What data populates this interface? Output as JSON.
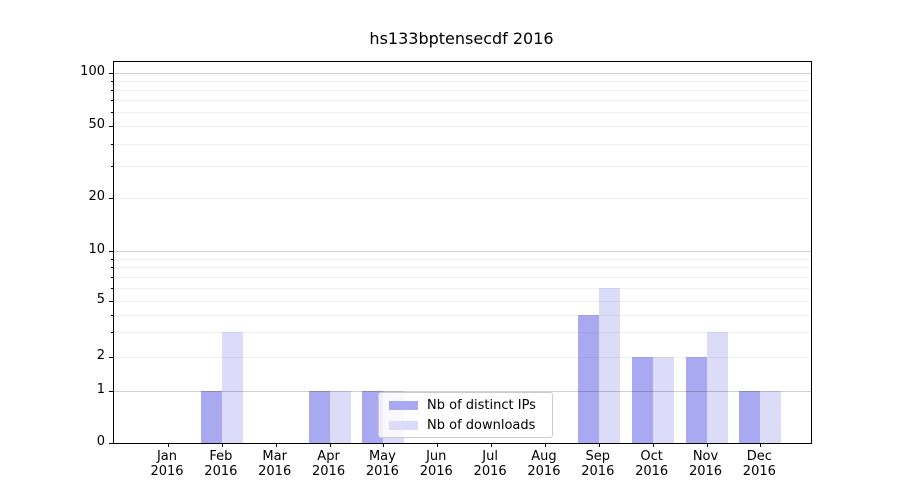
{
  "chart_data": {
    "type": "bar",
    "title": "hs133bptensecdf 2016",
    "categories": [
      "Jan 2016",
      "Feb 2016",
      "Mar 2016",
      "Apr 2016",
      "May 2016",
      "Jun 2016",
      "Jul 2016",
      "Aug 2016",
      "Sep 2016",
      "Oct 2016",
      "Nov 2016",
      "Dec 2016"
    ],
    "series": [
      {
        "key": "distinct-ips",
        "name": "Nb of distinct IPs",
        "color": "#a9a9f2",
        "values": [
          0,
          1,
          0,
          1,
          1,
          0,
          0,
          0,
          4,
          2,
          2,
          1
        ]
      },
      {
        "key": "downloads",
        "name": "Nb of downloads",
        "color": "#dcdcf9",
        "values": [
          0,
          3,
          0,
          1,
          1,
          0,
          0,
          0,
          6,
          2,
          3,
          1
        ]
      }
    ],
    "xlabel": "",
    "ylabel": "",
    "y_scale": "symlog (linear 0-1, log above)",
    "ylim": [
      0,
      115
    ],
    "y_ticks": [
      0,
      1,
      2,
      5,
      10,
      20,
      50,
      100
    ],
    "y_gridlines_major": [
      1,
      10,
      100
    ],
    "y_gridlines_minor": [
      2,
      3,
      4,
      5,
      6,
      7,
      8,
      9,
      20,
      30,
      40,
      50,
      60,
      70,
      80,
      90
    ],
    "grid": true,
    "legend": {
      "position": "lower center",
      "entries": [
        "Nb of distinct IPs",
        "Nb of downloads"
      ]
    }
  }
}
